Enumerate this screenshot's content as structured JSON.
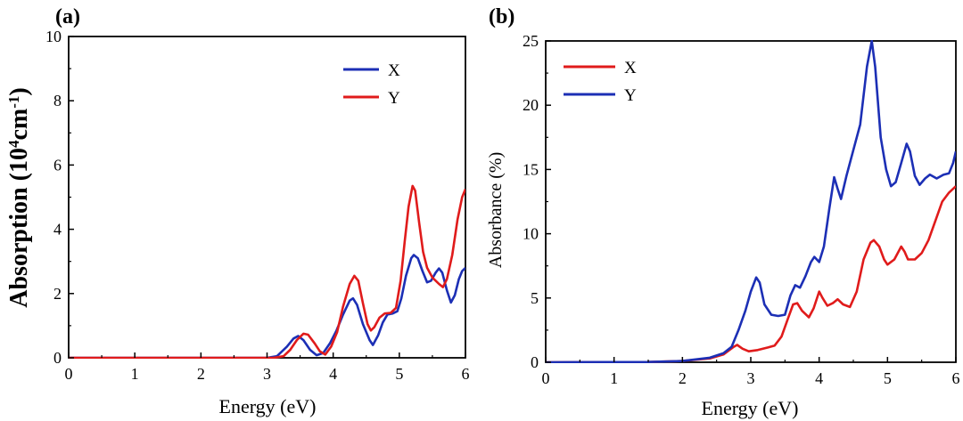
{
  "chart_data": [
    {
      "panel_label": "(a)",
      "type": "line",
      "xlabel": "Energy (eV)",
      "ylabel": "Absorption (10⁴cm⁻¹)",
      "xlim": [
        0,
        6
      ],
      "ylim": [
        0,
        10
      ],
      "xticks": [
        "0",
        "1",
        "2",
        "3",
        "4",
        "5",
        "6"
      ],
      "yticks": [
        "0",
        "2",
        "4",
        "6",
        "8",
        "10"
      ],
      "legend_position": "top-right",
      "series": [
        {
          "name": "X",
          "color": "#1c2fb5",
          "points": [
            [
              0,
              0
            ],
            [
              3.0,
              0
            ],
            [
              3.15,
              0.05
            ],
            [
              3.3,
              0.35
            ],
            [
              3.4,
              0.6
            ],
            [
              3.47,
              0.68
            ],
            [
              3.55,
              0.55
            ],
            [
              3.65,
              0.25
            ],
            [
              3.75,
              0.08
            ],
            [
              3.85,
              0.15
            ],
            [
              3.95,
              0.45
            ],
            [
              4.05,
              0.85
            ],
            [
              4.15,
              1.35
            ],
            [
              4.25,
              1.78
            ],
            [
              4.3,
              1.85
            ],
            [
              4.36,
              1.65
            ],
            [
              4.45,
              1.05
            ],
            [
              4.55,
              0.55
            ],
            [
              4.6,
              0.4
            ],
            [
              4.68,
              0.7
            ],
            [
              4.75,
              1.1
            ],
            [
              4.82,
              1.35
            ],
            [
              4.9,
              1.38
            ],
            [
              4.97,
              1.45
            ],
            [
              5.03,
              1.85
            ],
            [
              5.1,
              2.55
            ],
            [
              5.18,
              3.1
            ],
            [
              5.22,
              3.2
            ],
            [
              5.28,
              3.1
            ],
            [
              5.35,
              2.7
            ],
            [
              5.42,
              2.35
            ],
            [
              5.48,
              2.4
            ],
            [
              5.55,
              2.65
            ],
            [
              5.6,
              2.78
            ],
            [
              5.65,
              2.65
            ],
            [
              5.72,
              2.1
            ],
            [
              5.78,
              1.72
            ],
            [
              5.84,
              1.95
            ],
            [
              5.9,
              2.45
            ],
            [
              5.95,
              2.7
            ],
            [
              6.0,
              2.8
            ]
          ]
        },
        {
          "name": "Y",
          "color": "#e01b1b",
          "points": [
            [
              0,
              0
            ],
            [
              3.1,
              0
            ],
            [
              3.25,
              0.05
            ],
            [
              3.35,
              0.25
            ],
            [
              3.45,
              0.55
            ],
            [
              3.55,
              0.75
            ],
            [
              3.62,
              0.72
            ],
            [
              3.72,
              0.45
            ],
            [
              3.8,
              0.2
            ],
            [
              3.88,
              0.1
            ],
            [
              3.97,
              0.35
            ],
            [
              4.06,
              0.8
            ],
            [
              4.15,
              1.6
            ],
            [
              4.25,
              2.3
            ],
            [
              4.32,
              2.55
            ],
            [
              4.38,
              2.4
            ],
            [
              4.45,
              1.7
            ],
            [
              4.52,
              1.05
            ],
            [
              4.57,
              0.85
            ],
            [
              4.62,
              0.95
            ],
            [
              4.7,
              1.25
            ],
            [
              4.78,
              1.38
            ],
            [
              4.87,
              1.4
            ],
            [
              4.95,
              1.55
            ],
            [
              5.02,
              2.4
            ],
            [
              5.08,
              3.6
            ],
            [
              5.14,
              4.7
            ],
            [
              5.2,
              5.35
            ],
            [
              5.24,
              5.2
            ],
            [
              5.3,
              4.2
            ],
            [
              5.36,
              3.3
            ],
            [
              5.42,
              2.8
            ],
            [
              5.5,
              2.5
            ],
            [
              5.6,
              2.3
            ],
            [
              5.66,
              2.2
            ],
            [
              5.72,
              2.45
            ],
            [
              5.8,
              3.2
            ],
            [
              5.88,
              4.3
            ],
            [
              5.95,
              5.0
            ],
            [
              6.0,
              5.25
            ]
          ]
        }
      ]
    },
    {
      "panel_label": "(b)",
      "type": "line",
      "xlabel": "Energy (eV)",
      "ylabel": "Absorbance (%)",
      "xlim": [
        0,
        6
      ],
      "ylim": [
        0,
        25
      ],
      "xticks": [
        "0",
        "1",
        "2",
        "3",
        "4",
        "5",
        "6"
      ],
      "yticks": [
        "0",
        "5",
        "10",
        "15",
        "20",
        "25"
      ],
      "legend_position": "top-left",
      "series": [
        {
          "name": "X",
          "color": "#e01b1b",
          "points": [
            [
              0,
              0
            ],
            [
              1.5,
              0.02
            ],
            [
              2.0,
              0.1
            ],
            [
              2.4,
              0.3
            ],
            [
              2.6,
              0.6
            ],
            [
              2.75,
              1.2
            ],
            [
              2.8,
              1.35
            ],
            [
              2.88,
              1.05
            ],
            [
              2.97,
              0.85
            ],
            [
              3.1,
              0.95
            ],
            [
              3.25,
              1.15
            ],
            [
              3.35,
              1.3
            ],
            [
              3.45,
              2.0
            ],
            [
              3.55,
              3.5
            ],
            [
              3.62,
              4.5
            ],
            [
              3.68,
              4.6
            ],
            [
              3.75,
              4.0
            ],
            [
              3.85,
              3.5
            ],
            [
              3.92,
              4.2
            ],
            [
              4.0,
              5.5
            ],
            [
              4.05,
              5.0
            ],
            [
              4.12,
              4.4
            ],
            [
              4.2,
              4.6
            ],
            [
              4.27,
              4.9
            ],
            [
              4.35,
              4.5
            ],
            [
              4.45,
              4.3
            ],
            [
              4.55,
              5.5
            ],
            [
              4.65,
              8.0
            ],
            [
              4.75,
              9.3
            ],
            [
              4.8,
              9.5
            ],
            [
              4.88,
              9.0
            ],
            [
              4.95,
              8.0
            ],
            [
              5.0,
              7.6
            ],
            [
              5.1,
              8.0
            ],
            [
              5.2,
              9.0
            ],
            [
              5.25,
              8.6
            ],
            [
              5.3,
              8.0
            ],
            [
              5.4,
              8.0
            ],
            [
              5.5,
              8.5
            ],
            [
              5.6,
              9.5
            ],
            [
              5.7,
              11.0
            ],
            [
              5.8,
              12.5
            ],
            [
              5.9,
              13.2
            ],
            [
              6.0,
              13.7
            ]
          ]
        },
        {
          "name": "Y",
          "color": "#1c2fb5",
          "points": [
            [
              0,
              0
            ],
            [
              1.5,
              0.02
            ],
            [
              2.0,
              0.1
            ],
            [
              2.4,
              0.35
            ],
            [
              2.6,
              0.7
            ],
            [
              2.72,
              1.2
            ],
            [
              2.82,
              2.5
            ],
            [
              2.92,
              4.0
            ],
            [
              3.0,
              5.5
            ],
            [
              3.08,
              6.6
            ],
            [
              3.13,
              6.2
            ],
            [
              3.2,
              4.5
            ],
            [
              3.3,
              3.7
            ],
            [
              3.4,
              3.6
            ],
            [
              3.5,
              3.7
            ],
            [
              3.58,
              5.2
            ],
            [
              3.65,
              6.0
            ],
            [
              3.72,
              5.8
            ],
            [
              3.8,
              6.7
            ],
            [
              3.88,
              7.8
            ],
            [
              3.93,
              8.2
            ],
            [
              4.0,
              7.8
            ],
            [
              4.07,
              9.0
            ],
            [
              4.15,
              12.0
            ],
            [
              4.22,
              14.4
            ],
            [
              4.27,
              13.5
            ],
            [
              4.32,
              12.7
            ],
            [
              4.4,
              14.5
            ],
            [
              4.5,
              16.5
            ],
            [
              4.6,
              18.5
            ],
            [
              4.7,
              23.0
            ],
            [
              4.77,
              25.0
            ],
            [
              4.82,
              23.0
            ],
            [
              4.9,
              17.5
            ],
            [
              4.98,
              15.0
            ],
            [
              5.05,
              13.7
            ],
            [
              5.12,
              14.0
            ],
            [
              5.2,
              15.5
            ],
            [
              5.28,
              17.0
            ],
            [
              5.33,
              16.4
            ],
            [
              5.4,
              14.5
            ],
            [
              5.47,
              13.8
            ],
            [
              5.55,
              14.3
            ],
            [
              5.62,
              14.6
            ],
            [
              5.72,
              14.3
            ],
            [
              5.82,
              14.6
            ],
            [
              5.9,
              14.7
            ],
            [
              5.96,
              15.5
            ],
            [
              6.0,
              16.4
            ]
          ]
        }
      ]
    }
  ]
}
